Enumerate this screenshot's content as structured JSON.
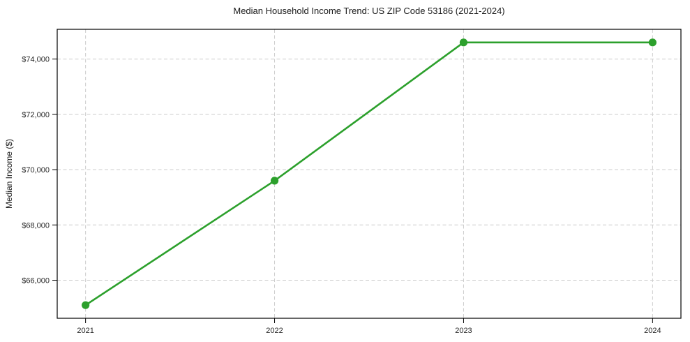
{
  "page": {
    "background": "#ffffff"
  },
  "chart_data": {
    "type": "line",
    "title": "Median Household Income Trend: US ZIP Code 53186 (2021-2024)",
    "xlabel": "",
    "ylabel": "Median Income ($)",
    "x": [
      2021,
      2022,
      2023,
      2024
    ],
    "values": [
      65100,
      69600,
      74600,
      74600
    ],
    "xticks": [
      {
        "value": 2021,
        "label": "2021"
      },
      {
        "value": 2022,
        "label": "2022"
      },
      {
        "value": 2023,
        "label": "2023"
      },
      {
        "value": 2024,
        "label": "2024"
      }
    ],
    "yticks": [
      {
        "value": 66000,
        "label": "$66,000"
      },
      {
        "value": 68000,
        "label": "$68,000"
      },
      {
        "value": 70000,
        "label": "$70,000"
      },
      {
        "value": 72000,
        "label": "$72,000"
      },
      {
        "value": 74000,
        "label": "$74,000"
      }
    ],
    "xlim": [
      2020.85,
      2024.15
    ],
    "ylim": [
      64625,
      75075
    ],
    "grid": true,
    "grid_style": "dashed",
    "grid_color": "#cccccc",
    "legend": false,
    "line_color": "#2ca02c",
    "marker": "circle",
    "marker_radius": 5.6,
    "background": "#ffffff"
  }
}
